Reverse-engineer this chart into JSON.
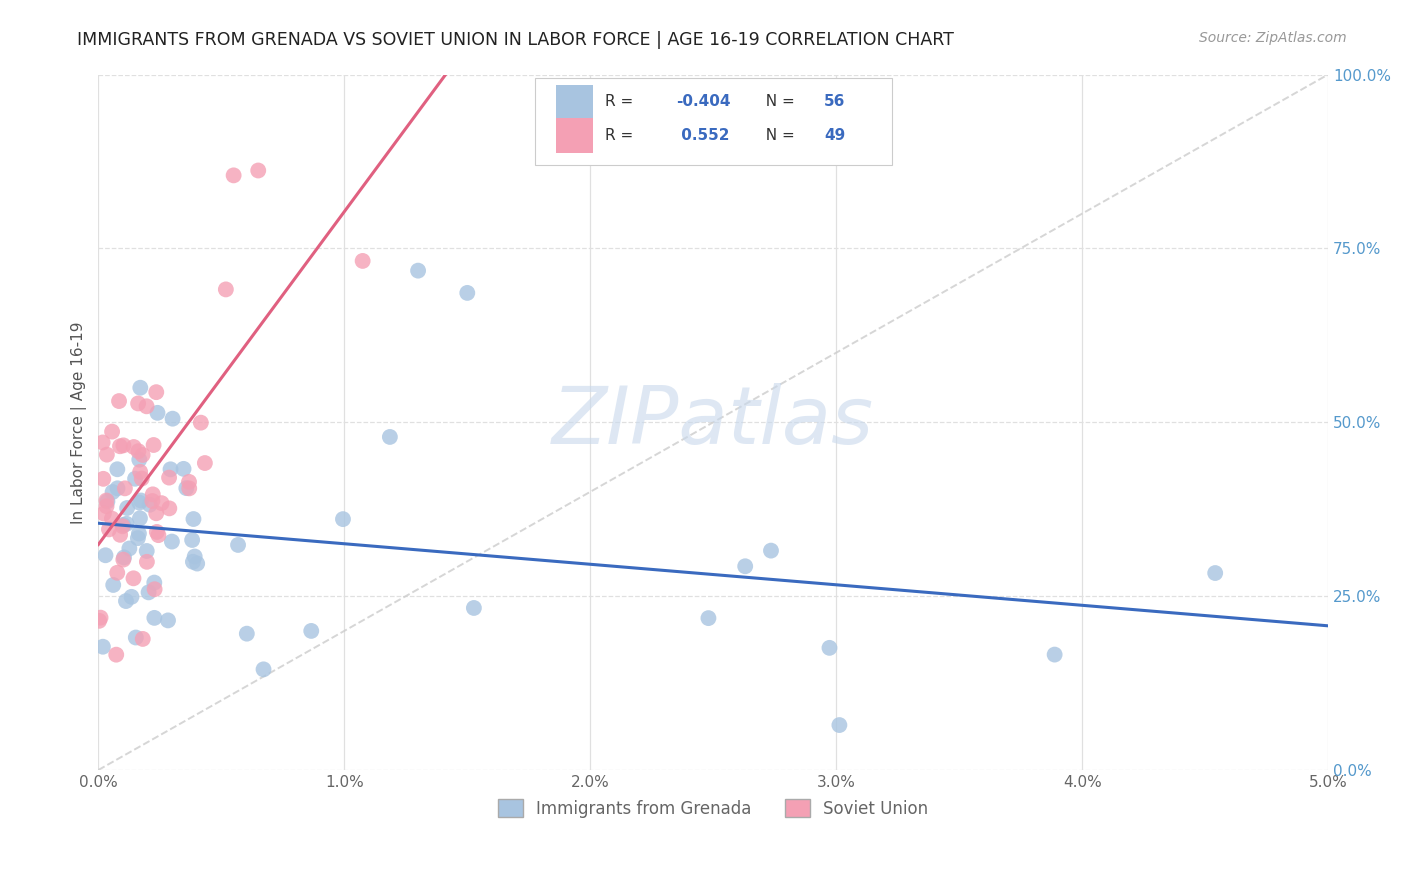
{
  "title": "IMMIGRANTS FROM GRENADA VS SOVIET UNION IN LABOR FORCE | AGE 16-19 CORRELATION CHART",
  "source": "Source: ZipAtlas.com",
  "ylabel": "In Labor Force | Age 16-19",
  "xlim": [
    0.0,
    0.05
  ],
  "ylim": [
    0.0,
    1.0
  ],
  "xticks": [
    0.0,
    0.01,
    0.02,
    0.03,
    0.04,
    0.05
  ],
  "xticklabels": [
    "0.0%",
    "1.0%",
    "2.0%",
    "3.0%",
    "4.0%",
    "5.0%"
  ],
  "yticks_right": [
    0.0,
    0.25,
    0.5,
    0.75,
    1.0
  ],
  "yticklabels_right": [
    "0.0%",
    "25.0%",
    "50.0%",
    "75.0%",
    "100.0%"
  ],
  "grenada_R": -0.404,
  "grenada_N": 56,
  "soviet_R": 0.552,
  "soviet_N": 49,
  "grenada_color": "#a8c4e0",
  "soviet_color": "#f4a0b4",
  "grenada_line_color": "#3a6abf",
  "soviet_line_color": "#e06080",
  "watermark_color": "#c8d8ec",
  "background_color": "#ffffff",
  "grid_color": "#e0e0e0",
  "title_color": "#222222",
  "source_color": "#999999",
  "right_axis_color": "#5599cc",
  "left_axis_color": "#555555",
  "tick_label_color": "#666666"
}
